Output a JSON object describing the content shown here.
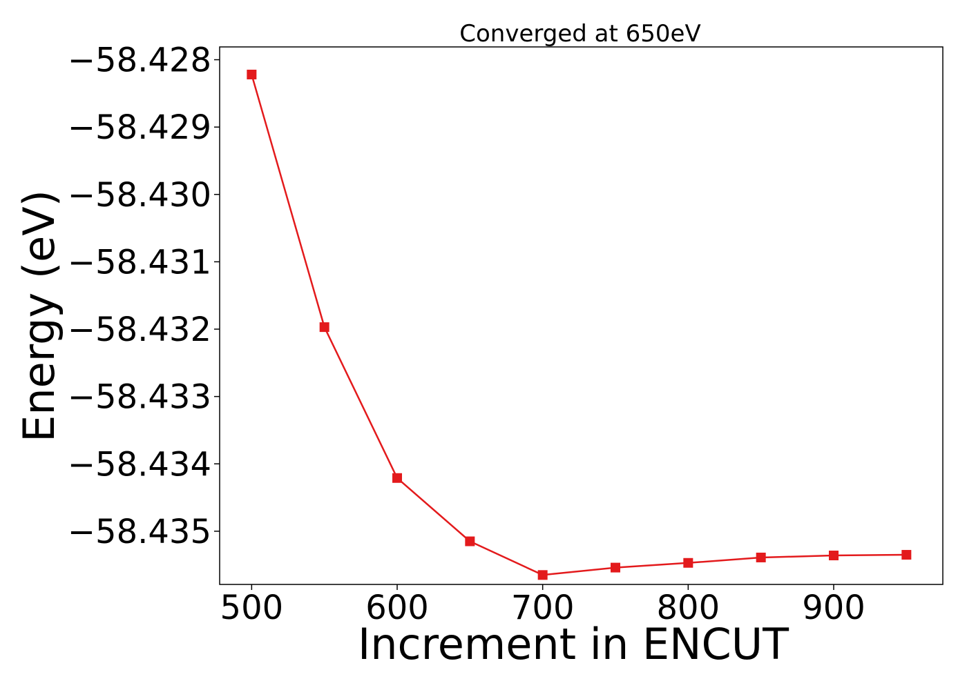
{
  "chart_data": {
    "type": "line",
    "title": "Converged at 650eV",
    "xlabel": "Increment in ENCUT",
    "ylabel": "Energy (eV)",
    "xlim": [
      478,
      975
    ],
    "ylim": [
      -58.43579,
      -58.42781
    ],
    "xticks": [
      500,
      600,
      700,
      800,
      900
    ],
    "xtick_labels": [
      "500",
      "600",
      "700",
      "800",
      "900"
    ],
    "yticks": [
      -58.428,
      -58.429,
      -58.43,
      -58.431,
      -58.432,
      -58.433,
      -58.434,
      -58.435
    ],
    "ytick_labels": [
      "−58.428",
      "−58.429",
      "−58.430",
      "−58.431",
      "−58.432",
      "−58.433",
      "−58.434",
      "−58.435"
    ],
    "grid": false,
    "series": [
      {
        "color": "#e31a1c",
        "marker": "square",
        "x": [
          500,
          550,
          600,
          650,
          700,
          750,
          800,
          850,
          900,
          950
        ],
        "y": [
          -58.42822,
          -58.43197,
          -58.43421,
          -58.43515,
          -58.43565,
          -58.43554,
          -58.43547,
          -58.43539,
          -58.43536,
          -58.43535
        ]
      }
    ]
  }
}
